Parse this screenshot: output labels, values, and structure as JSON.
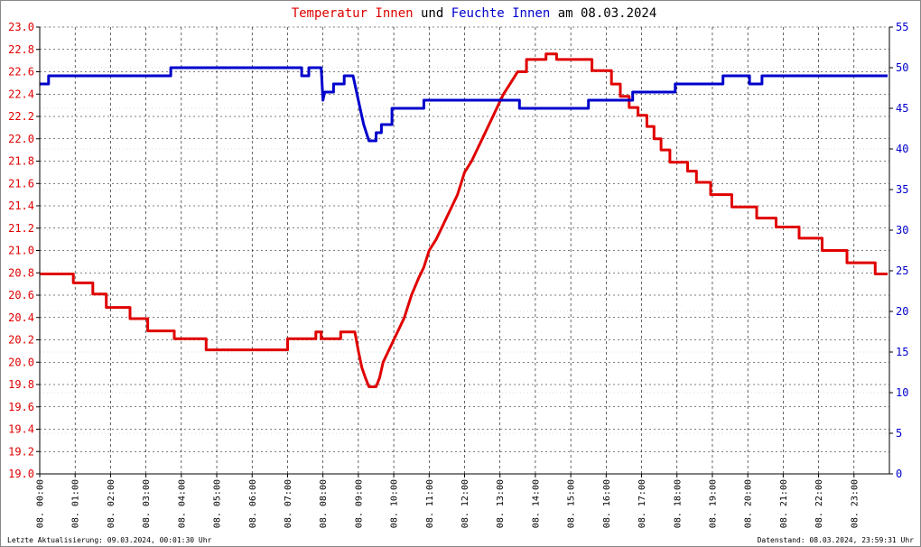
{
  "chart_data": {
    "type": "line",
    "title_parts": [
      {
        "text": "Temperatur Innen",
        "color": "#e00000"
      },
      {
        "text": " und ",
        "color": "#000000"
      },
      {
        "text": "Feuchte Innen",
        "color": "#0000cc"
      },
      {
        "text": " am 08.03.2024",
        "color": "#000000"
      }
    ],
    "x_label_prefix": "08.",
    "x_ticks": [
      "00:00",
      "01:00",
      "02:00",
      "03:00",
      "04:00",
      "05:00",
      "06:00",
      "07:00",
      "08:00",
      "09:00",
      "10:00",
      "11:00",
      "12:00",
      "13:00",
      "14:00",
      "15:00",
      "16:00",
      "17:00",
      "18:00",
      "19:00",
      "20:00",
      "21:00",
      "22:00",
      "23:00"
    ],
    "x_range_hours": [
      0,
      24
    ],
    "y_left": {
      "range": [
        19.0,
        23.0
      ],
      "ticks": [
        "19.0",
        "19.2",
        "19.4",
        "19.6",
        "19.8",
        "20.0",
        "20.2",
        "20.4",
        "20.6",
        "20.8",
        "21.0",
        "21.2",
        "21.4",
        "21.6",
        "21.8",
        "22.0",
        "22.2",
        "22.4",
        "22.6",
        "22.8",
        "23.0"
      ],
      "color": "#e00000"
    },
    "y_right": {
      "range": [
        0,
        55
      ],
      "ticks": [
        "0",
        "5",
        "10",
        "15",
        "20",
        "25",
        "30",
        "35",
        "40",
        "45",
        "50",
        "55"
      ],
      "color": "#0000cc"
    },
    "grid": true,
    "series": [
      {
        "name": "Temperatur Innen",
        "color": "#e00000",
        "axis": "left",
        "step": true,
        "points": [
          [
            0.0,
            20.79
          ],
          [
            0.95,
            20.79
          ],
          [
            0.95,
            20.71
          ],
          [
            1.5,
            20.71
          ],
          [
            1.5,
            20.61
          ],
          [
            1.88,
            20.61
          ],
          [
            1.88,
            20.49
          ],
          [
            2.55,
            20.49
          ],
          [
            2.55,
            20.39
          ],
          [
            3.05,
            20.39
          ],
          [
            3.05,
            20.28
          ],
          [
            3.8,
            20.28
          ],
          [
            3.8,
            20.21
          ],
          [
            4.7,
            20.21
          ],
          [
            4.7,
            20.11
          ],
          [
            7.0,
            20.11
          ],
          [
            7.0,
            20.21
          ],
          [
            7.8,
            20.21
          ],
          [
            7.8,
            20.27
          ],
          [
            7.95,
            20.27
          ],
          [
            7.95,
            20.21
          ],
          [
            8.5,
            20.21
          ],
          [
            8.5,
            20.27
          ],
          [
            8.9,
            20.27
          ],
          [
            9.0,
            20.1
          ],
          [
            9.1,
            19.95
          ],
          [
            9.2,
            19.86
          ],
          [
            9.3,
            19.78
          ],
          [
            9.5,
            19.78
          ],
          [
            9.6,
            19.86
          ],
          [
            9.7,
            20.0
          ],
          [
            9.85,
            20.1
          ],
          [
            10.0,
            20.2
          ],
          [
            10.15,
            20.3
          ],
          [
            10.3,
            20.4
          ],
          [
            10.5,
            20.6
          ],
          [
            10.7,
            20.75
          ],
          [
            10.85,
            20.85
          ],
          [
            11.0,
            21.0
          ],
          [
            11.2,
            21.1
          ],
          [
            11.35,
            21.2
          ],
          [
            11.5,
            21.3
          ],
          [
            11.65,
            21.4
          ],
          [
            11.8,
            21.5
          ],
          [
            12.0,
            21.7
          ],
          [
            12.2,
            21.8
          ],
          [
            12.35,
            21.9
          ],
          [
            12.5,
            22.0
          ],
          [
            12.65,
            22.1
          ],
          [
            12.8,
            22.2
          ],
          [
            12.95,
            22.3
          ],
          [
            13.1,
            22.4
          ],
          [
            13.3,
            22.5
          ],
          [
            13.5,
            22.6
          ],
          [
            13.75,
            22.6
          ],
          [
            13.75,
            22.71
          ],
          [
            14.3,
            22.71
          ],
          [
            14.3,
            22.76
          ],
          [
            14.6,
            22.76
          ],
          [
            14.6,
            22.71
          ],
          [
            15.6,
            22.71
          ],
          [
            15.6,
            22.61
          ],
          [
            16.15,
            22.61
          ],
          [
            16.15,
            22.49
          ],
          [
            16.4,
            22.49
          ],
          [
            16.4,
            22.38
          ],
          [
            16.65,
            22.38
          ],
          [
            16.65,
            22.28
          ],
          [
            16.9,
            22.28
          ],
          [
            16.9,
            22.21
          ],
          [
            17.15,
            22.21
          ],
          [
            17.15,
            22.11
          ],
          [
            17.35,
            22.11
          ],
          [
            17.35,
            22.0
          ],
          [
            17.55,
            22.0
          ],
          [
            17.55,
            21.9
          ],
          [
            17.8,
            21.9
          ],
          [
            17.8,
            21.79
          ],
          [
            18.3,
            21.79
          ],
          [
            18.3,
            21.71
          ],
          [
            18.55,
            21.71
          ],
          [
            18.55,
            21.61
          ],
          [
            18.95,
            21.61
          ],
          [
            18.95,
            21.5
          ],
          [
            19.55,
            21.5
          ],
          [
            19.55,
            21.39
          ],
          [
            20.25,
            21.39
          ],
          [
            20.25,
            21.29
          ],
          [
            20.8,
            21.29
          ],
          [
            20.8,
            21.21
          ],
          [
            21.45,
            21.21
          ],
          [
            21.45,
            21.11
          ],
          [
            22.1,
            21.11
          ],
          [
            22.1,
            21.0
          ],
          [
            22.8,
            21.0
          ],
          [
            22.8,
            20.89
          ],
          [
            23.6,
            20.89
          ],
          [
            23.6,
            20.79
          ],
          [
            23.95,
            20.79
          ]
        ]
      },
      {
        "name": "Feuchte Innen",
        "color": "#0000cc",
        "axis": "right",
        "step": true,
        "points": [
          [
            0.0,
            48
          ],
          [
            0.25,
            48
          ],
          [
            0.25,
            49
          ],
          [
            3.7,
            49
          ],
          [
            3.7,
            50
          ],
          [
            7.4,
            50
          ],
          [
            7.4,
            49
          ],
          [
            7.6,
            49
          ],
          [
            7.6,
            50
          ],
          [
            7.95,
            50
          ],
          [
            8.0,
            46
          ],
          [
            8.05,
            47
          ],
          [
            8.3,
            47
          ],
          [
            8.3,
            48
          ],
          [
            8.6,
            48
          ],
          [
            8.6,
            49
          ],
          [
            8.85,
            49
          ],
          [
            8.95,
            47
          ],
          [
            9.05,
            45
          ],
          [
            9.15,
            43
          ],
          [
            9.3,
            41
          ],
          [
            9.5,
            41
          ],
          [
            9.5,
            42
          ],
          [
            9.65,
            42
          ],
          [
            9.65,
            43
          ],
          [
            9.95,
            43
          ],
          [
            9.95,
            45
          ],
          [
            10.85,
            45
          ],
          [
            10.85,
            46
          ],
          [
            13.55,
            46
          ],
          [
            13.55,
            45
          ],
          [
            15.5,
            45
          ],
          [
            15.5,
            46
          ],
          [
            16.75,
            46
          ],
          [
            16.75,
            47
          ],
          [
            17.95,
            47
          ],
          [
            17.95,
            48
          ],
          [
            19.3,
            48
          ],
          [
            19.3,
            49
          ],
          [
            20.05,
            49
          ],
          [
            20.05,
            48
          ],
          [
            20.4,
            48
          ],
          [
            20.4,
            49
          ],
          [
            23.95,
            49
          ]
        ]
      }
    ]
  },
  "footer": {
    "left": "Letzte Aktualisierung: 09.03.2024, 00:01:30 Uhr",
    "right": "Datenstand: 08.03.2024, 23:59:31 Uhr"
  }
}
